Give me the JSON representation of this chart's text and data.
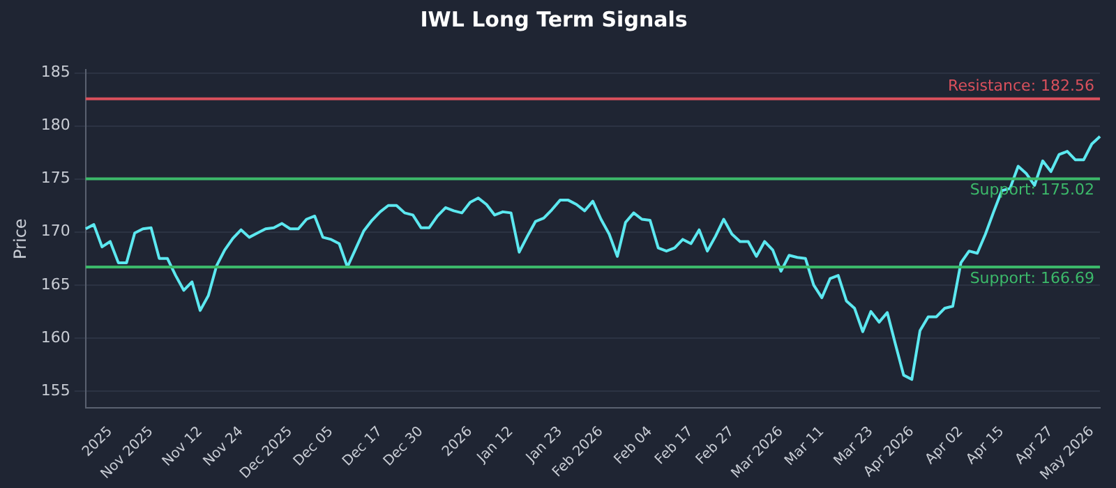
{
  "chart_data": {
    "type": "line",
    "title": "IWL Long Term Signals",
    "ylabel": "Price",
    "categories": [
      null,
      null,
      null,
      "2025",
      null,
      null,
      null,
      null,
      "Nov 2025",
      null,
      null,
      null,
      null,
      null,
      "Nov 12",
      null,
      null,
      null,
      null,
      "Nov 24",
      null,
      null,
      null,
      null,
      null,
      "Dec 2025",
      null,
      null,
      null,
      null,
      "Dec 05",
      null,
      null,
      null,
      null,
      null,
      "Dec 17",
      null,
      null,
      null,
      null,
      "Dec 30",
      null,
      null,
      null,
      null,
      null,
      "2026",
      null,
      null,
      null,
      null,
      "Jan 12",
      null,
      null,
      null,
      null,
      null,
      "Jan 23",
      null,
      null,
      null,
      null,
      "Feb 2026",
      null,
      null,
      null,
      null,
      null,
      "Feb 04",
      null,
      null,
      null,
      null,
      "Feb 17",
      null,
      null,
      null,
      null,
      "Feb 27",
      null,
      null,
      null,
      null,
      null,
      "Mar 2026",
      null,
      null,
      null,
      null,
      "Mar 11",
      null,
      null,
      null,
      null,
      null,
      "Mar 23",
      null,
      null,
      null,
      null,
      "Apr 2026",
      null,
      null,
      null,
      null,
      null,
      "Apr 02",
      null,
      null,
      null,
      null,
      "Apr 15",
      null,
      null,
      null,
      null,
      null,
      "Apr 27",
      null,
      null,
      null,
      null,
      "May 2026",
      null
    ],
    "series": [
      {
        "color": "#5ce8f0",
        "values": [
          170.3,
          170.7,
          168.6,
          169.1,
          167.1,
          167.1,
          169.9,
          170.3,
          170.4,
          167.5,
          167.5,
          165.9,
          164.5,
          165.3,
          162.6,
          164.0,
          166.8,
          168.3,
          169.4,
          170.2,
          169.5,
          169.9,
          170.3,
          170.4,
          170.8,
          170.3,
          170.3,
          171.2,
          171.5,
          169.5,
          169.3,
          168.9,
          166.7,
          168.4,
          170.1,
          171.1,
          171.9,
          172.5,
          172.5,
          171.8,
          171.6,
          170.4,
          170.4,
          171.5,
          172.3,
          172.0,
          171.8,
          172.8,
          173.2,
          172.6,
          171.6,
          171.9,
          171.8,
          168.1,
          169.6,
          171.0,
          171.3,
          172.1,
          173.0,
          173.0,
          172.6,
          172.0,
          172.9,
          171.2,
          169.8,
          167.7,
          170.9,
          171.8,
          171.2,
          171.1,
          168.5,
          168.2,
          168.5,
          169.3,
          168.9,
          170.2,
          168.2,
          169.6,
          171.2,
          169.8,
          169.1,
          169.1,
          167.7,
          169.1,
          168.3,
          166.3,
          167.8,
          167.6,
          167.5,
          165.0,
          163.8,
          165.6,
          165.9,
          163.5,
          162.8,
          160.6,
          162.5,
          161.5,
          162.4,
          159.4,
          156.5,
          156.1,
          160.7,
          162.0,
          162.0,
          162.8,
          163.0,
          167.1,
          168.2,
          168.0,
          169.8,
          171.9,
          173.9,
          174.1,
          176.2,
          175.5,
          174.4,
          176.7,
          175.7,
          177.3,
          177.6,
          176.8,
          176.8,
          178.3,
          179.0
        ]
      }
    ],
    "ylim": [
      153.4,
      185.3
    ],
    "yticks": [
      155,
      160,
      165,
      170,
      175,
      180,
      185
    ],
    "grid": "y",
    "legend": false,
    "marker": "none",
    "line_style": "solid",
    "ref_lines": [
      {
        "axis": "y",
        "value": 182.56,
        "label": "Resistance: 182.56",
        "color": "#d9505c"
      },
      {
        "axis": "y",
        "value": 175.02,
        "label": "Support: 175.02",
        "color": "#3cb96a"
      },
      {
        "axis": "y",
        "value": 166.69,
        "label": "Support: 166.69",
        "color": "#3cb96a"
      }
    ]
  }
}
